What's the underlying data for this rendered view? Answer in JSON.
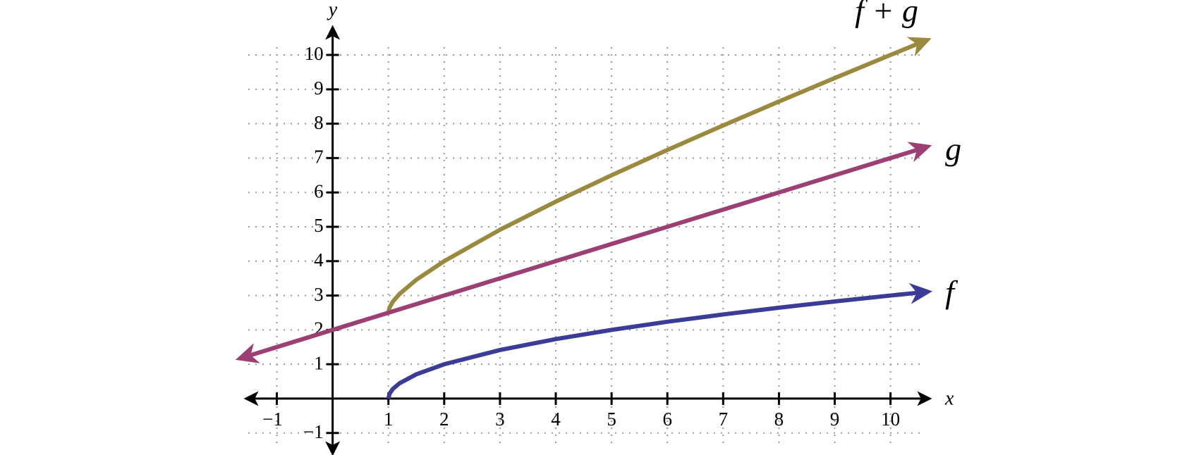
{
  "chart_data": {
    "type": "line",
    "xlabel": "x",
    "ylabel": "y",
    "xlim": [
      -1.55,
      10.7
    ],
    "ylim": [
      -1.6,
      10.8
    ],
    "xticks": [
      {
        "value": -1,
        "label": "−1"
      },
      1,
      2,
      3,
      4,
      5,
      6,
      7,
      8,
      9,
      10
    ],
    "yticks": [
      {
        "value": -1,
        "label": "−1"
      },
      1,
      2,
      3,
      4,
      5,
      6,
      7,
      8,
      9,
      10
    ],
    "grid": true,
    "series": [
      {
        "name": "f + g",
        "color": "#998a3e",
        "x": [
          1,
          1.02,
          1.08,
          1.2,
          1.5,
          2,
          3,
          4,
          5,
          6,
          7,
          8,
          9,
          10,
          10.5
        ],
        "values": [
          2.5,
          2.651,
          2.823,
          3.047,
          3.457,
          4,
          4.914,
          5.732,
          6.5,
          7.236,
          7.949,
          8.646,
          9.328,
          10,
          10.332
        ]
      },
      {
        "name": "g",
        "color": "#9c3f73",
        "x": [
          -1.5,
          1,
          10.5
        ],
        "values": [
          1.25,
          2.5,
          7.25
        ]
      },
      {
        "name": "f",
        "color": "#3b3b98",
        "x": [
          1,
          1.02,
          1.08,
          1.2,
          1.5,
          2,
          3,
          4,
          5,
          6,
          7,
          8,
          9,
          10,
          10.5
        ],
        "values": [
          0,
          0.141,
          0.283,
          0.447,
          0.707,
          1,
          1.414,
          1.732,
          2,
          2.236,
          2.449,
          2.646,
          2.828,
          3,
          3.082
        ]
      }
    ]
  }
}
